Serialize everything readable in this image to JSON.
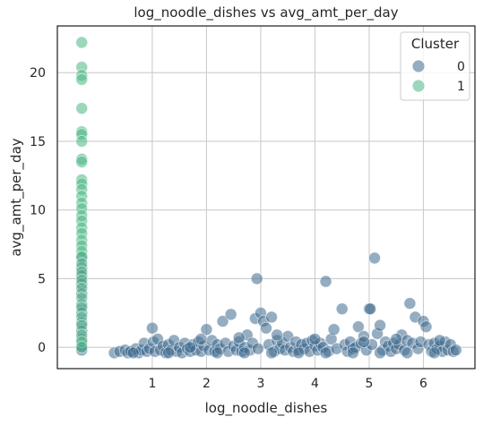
{
  "chart_data": {
    "type": "scatter",
    "title": "log_noodle_dishes vs avg_amt_per_day",
    "xlabel": "log_noodle_dishes",
    "ylabel": "avg_amt_per_day",
    "xlim": [
      -0.75,
      6.95
    ],
    "ylim": [
      -1.55,
      23.4
    ],
    "xticks": [
      "1",
      "2",
      "3",
      "4",
      "5",
      "6"
    ],
    "yticks": [
      "0",
      "5",
      "10",
      "15",
      "20"
    ],
    "grid": true,
    "legend": {
      "title": "Cluster",
      "placement": "top-right",
      "entries": [
        "0",
        "1"
      ]
    },
    "series": [
      {
        "name": "0",
        "color": "#3e6a8e",
        "points": [
          [
            -0.3,
            6.5
          ],
          [
            -0.3,
            5.8
          ],
          [
            -0.3,
            5.2
          ],
          [
            -0.3,
            4.6
          ],
          [
            -0.3,
            3.9
          ],
          [
            -0.3,
            3.1
          ],
          [
            -0.3,
            2.5
          ],
          [
            -0.3,
            1.8
          ],
          [
            -0.3,
            1.2
          ],
          [
            -0.3,
            0.6
          ],
          [
            -0.3,
            0.1
          ],
          [
            -0.3,
            -0.2
          ],
          [
            0.3,
            -0.4
          ],
          [
            0.4,
            -0.3
          ],
          [
            0.5,
            -0.2
          ],
          [
            0.55,
            -0.4
          ],
          [
            0.6,
            -0.3
          ],
          [
            0.7,
            -0.1
          ],
          [
            0.75,
            -0.4
          ],
          [
            0.8,
            -0.2
          ],
          [
            0.85,
            0.3
          ],
          [
            0.9,
            -0.3
          ],
          [
            0.95,
            -0.1
          ],
          [
            1.0,
            1.4
          ],
          [
            1.02,
            0.4
          ],
          [
            1.05,
            -0.3
          ],
          [
            1.1,
            0.6
          ],
          [
            1.15,
            -0.2
          ],
          [
            1.2,
            0.1
          ],
          [
            1.25,
            -0.4
          ],
          [
            1.3,
            0.2
          ],
          [
            1.35,
            -0.2
          ],
          [
            1.4,
            0.5
          ],
          [
            1.45,
            -0.3
          ],
          [
            1.5,
            0.0
          ],
          [
            1.55,
            -0.4
          ],
          [
            1.6,
            0.3
          ],
          [
            1.65,
            -0.1
          ],
          [
            1.7,
            -0.3
          ],
          [
            1.75,
            0.2
          ],
          [
            1.8,
            -0.2
          ],
          [
            1.85,
            0.4
          ],
          [
            1.9,
            -0.3
          ],
          [
            1.95,
            0.1
          ],
          [
            2.0,
            1.3
          ],
          [
            2.05,
            -0.2
          ],
          [
            2.1,
            0.5
          ],
          [
            2.15,
            -0.3
          ],
          [
            2.2,
            0.2
          ],
          [
            2.25,
            -0.1
          ],
          [
            2.3,
            1.9
          ],
          [
            2.35,
            0.3
          ],
          [
            2.4,
            -0.3
          ],
          [
            2.45,
            2.4
          ],
          [
            2.5,
            0.1
          ],
          [
            2.55,
            -0.2
          ],
          [
            2.6,
            0.4
          ],
          [
            2.65,
            -0.3
          ],
          [
            2.7,
            0.0
          ],
          [
            2.75,
            0.9
          ],
          [
            2.8,
            -0.2
          ],
          [
            2.85,
            0.3
          ],
          [
            2.9,
            2.1
          ],
          [
            2.93,
            5.0
          ],
          [
            2.95,
            -0.1
          ],
          [
            3.0,
            2.5
          ],
          [
            3.05,
            1.9
          ],
          [
            3.1,
            1.4
          ],
          [
            3.15,
            0.2
          ],
          [
            3.2,
            2.2
          ],
          [
            3.25,
            -0.3
          ],
          [
            3.3,
            0.5
          ],
          [
            3.35,
            -0.1
          ],
          [
            3.4,
            0.3
          ],
          [
            3.45,
            -0.2
          ],
          [
            3.5,
            0.8
          ],
          [
            3.55,
            0.0
          ],
          [
            3.6,
            -0.3
          ],
          [
            3.65,
            0.4
          ],
          [
            3.7,
            -0.2
          ],
          [
            3.75,
            0.2
          ],
          [
            3.8,
            -0.1
          ],
          [
            3.85,
            0.3
          ],
          [
            3.9,
            -0.3
          ],
          [
            3.95,
            0.5
          ],
          [
            4.0,
            0.1
          ],
          [
            4.05,
            -0.2
          ],
          [
            4.1,
            0.3
          ],
          [
            4.15,
            0.0
          ],
          [
            4.2,
            4.8
          ],
          [
            4.25,
            -0.3
          ],
          [
            4.3,
            0.6
          ],
          [
            4.35,
            1.3
          ],
          [
            4.4,
            -0.1
          ],
          [
            4.5,
            2.8
          ],
          [
            4.55,
            0.2
          ],
          [
            4.6,
            -0.3
          ],
          [
            4.65,
            0.4
          ],
          [
            4.7,
            -0.1
          ],
          [
            4.75,
            0.0
          ],
          [
            4.8,
            1.5
          ],
          [
            4.85,
            0.3
          ],
          [
            4.9,
            0.8
          ],
          [
            4.95,
            -0.2
          ],
          [
            5.0,
            2.8
          ],
          [
            5.02,
            2.8
          ],
          [
            5.05,
            0.2
          ],
          [
            5.1,
            6.5
          ],
          [
            5.15,
            1.0
          ],
          [
            5.2,
            1.6
          ],
          [
            5.25,
            -0.2
          ],
          [
            5.3,
            0.4
          ],
          [
            5.35,
            0.1
          ],
          [
            5.4,
            -0.3
          ],
          [
            5.45,
            0.3
          ],
          [
            5.5,
            -0.1
          ],
          [
            5.55,
            0.2
          ],
          [
            5.6,
            0.9
          ],
          [
            5.65,
            -0.2
          ],
          [
            5.7,
            0.5
          ],
          [
            5.75,
            3.2
          ],
          [
            5.8,
            0.3
          ],
          [
            5.85,
            2.2
          ],
          [
            5.9,
            -0.1
          ],
          [
            5.95,
            0.4
          ],
          [
            6.0,
            1.9
          ],
          [
            6.05,
            1.5
          ],
          [
            6.1,
            0.2
          ],
          [
            6.15,
            -0.3
          ],
          [
            6.2,
            0.3
          ],
          [
            6.25,
            -0.1
          ],
          [
            6.3,
            0.1
          ],
          [
            6.35,
            -0.3
          ],
          [
            6.4,
            0.4
          ],
          [
            6.45,
            -0.2
          ],
          [
            6.5,
            0.2
          ],
          [
            6.55,
            -0.3
          ],
          [
            6.6,
            -0.2
          ],
          [
            1.3,
            -0.4
          ],
          [
            1.7,
            0.0
          ],
          [
            2.2,
            -0.4
          ],
          [
            2.7,
            -0.4
          ],
          [
            3.2,
            -0.4
          ],
          [
            3.7,
            -0.4
          ],
          [
            4.2,
            -0.4
          ],
          [
            4.7,
            -0.4
          ],
          [
            5.2,
            -0.4
          ],
          [
            5.7,
            -0.4
          ],
          [
            6.2,
            -0.4
          ],
          [
            0.65,
            -0.4
          ],
          [
            1.9,
            0.6
          ],
          [
            2.6,
            0.7
          ],
          [
            3.3,
            0.9
          ],
          [
            4.0,
            0.6
          ],
          [
            4.9,
            0.4
          ],
          [
            5.5,
            0.6
          ],
          [
            6.3,
            0.5
          ]
        ]
      },
      {
        "name": "1",
        "color": "#4ab784",
        "points": [
          [
            -0.3,
            22.2
          ],
          [
            -0.3,
            20.4
          ],
          [
            -0.3,
            19.8
          ],
          [
            -0.3,
            19.5
          ],
          [
            -0.3,
            17.4
          ],
          [
            -0.3,
            15.7
          ],
          [
            -0.3,
            15.5
          ],
          [
            -0.3,
            15.0
          ],
          [
            -0.3,
            13.7
          ],
          [
            -0.3,
            13.5
          ],
          [
            -0.3,
            12.2
          ],
          [
            -0.3,
            11.9
          ],
          [
            -0.3,
            11.5
          ],
          [
            -0.3,
            11.0
          ],
          [
            -0.3,
            10.5
          ],
          [
            -0.3,
            10.1
          ],
          [
            -0.3,
            9.6
          ],
          [
            -0.3,
            9.2
          ],
          [
            -0.3,
            8.7
          ],
          [
            -0.3,
            8.3
          ],
          [
            -0.3,
            7.8
          ],
          [
            -0.3,
            7.4
          ],
          [
            -0.3,
            7.0
          ],
          [
            -0.3,
            6.6
          ],
          [
            -0.3,
            6.1
          ],
          [
            -0.3,
            5.5
          ],
          [
            -0.3,
            4.9
          ],
          [
            -0.3,
            4.3
          ],
          [
            -0.3,
            3.6
          ],
          [
            -0.3,
            2.9
          ],
          [
            -0.3,
            2.2
          ],
          [
            -0.3,
            1.6
          ],
          [
            -0.3,
            0.9
          ],
          [
            -0.3,
            0.4
          ],
          [
            -0.3,
            0.0
          ]
        ]
      }
    ]
  }
}
